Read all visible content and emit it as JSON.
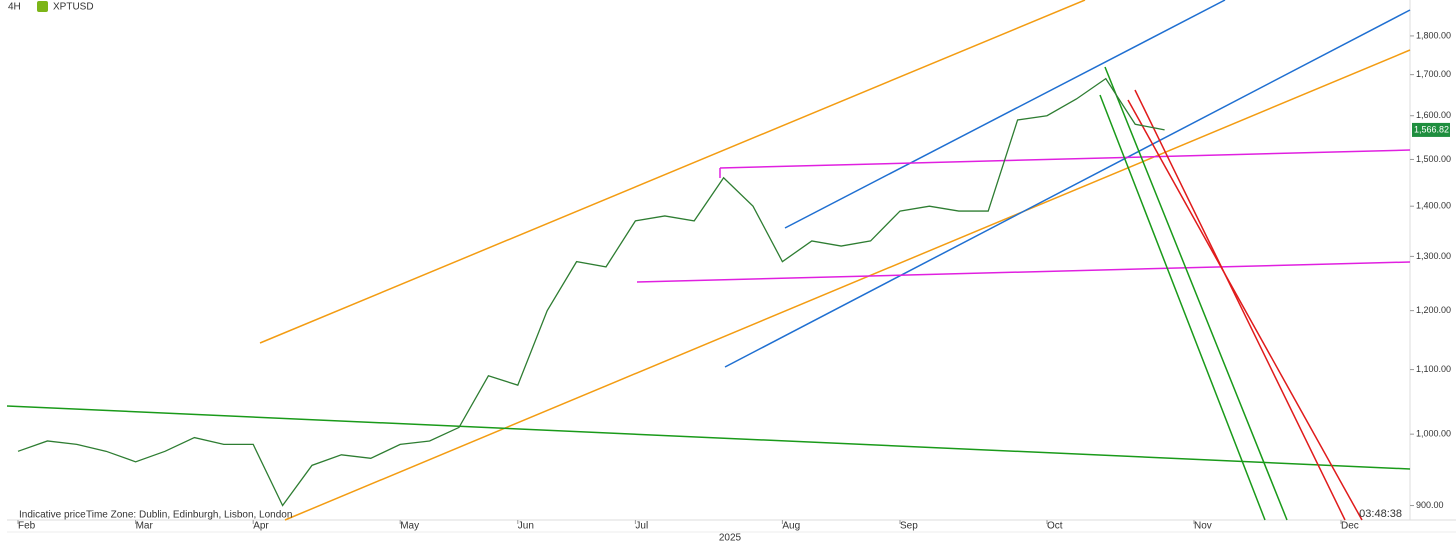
{
  "chart_data": {
    "type": "line",
    "interval": "4H",
    "symbol": "XPTUSD",
    "footnote": "Indicative price",
    "timezone": "Time Zone: Dublin, Edinburgh, Lisbon, London",
    "countdown": "03:48:38",
    "x_label": "2025",
    "categories": [
      "Feb",
      null,
      null,
      null,
      "Mar",
      null,
      null,
      null,
      "Apr",
      null,
      null,
      null,
      null,
      "May",
      null,
      null,
      null,
      "Jun",
      null,
      null,
      null,
      "Jul",
      null,
      null,
      null,
      null,
      "Aug",
      null,
      null,
      null,
      "Sep",
      null,
      null,
      null,
      null,
      "Oct",
      null,
      null,
      null,
      null,
      "Nov",
      null,
      null,
      null,
      null,
      "Dec",
      null,
      null
    ],
    "series": [
      {
        "name": "XPTUSD",
        "color": "#2e7d32",
        "values": [
          975,
          990,
          985,
          975,
          960,
          975,
          995,
          985,
          985,
          900,
          955,
          970,
          965,
          985,
          990,
          1010,
          1090,
          1075,
          1200,
          1290,
          1280,
          1370,
          1380,
          1370,
          1460,
          1400,
          1290,
          1330,
          1320,
          1330,
          1390,
          1400,
          1390,
          1390,
          1590,
          1600,
          1640,
          1690,
          1580,
          1567,
          null,
          null,
          null,
          null,
          null,
          null,
          null,
          null
        ]
      }
    ],
    "last_price": {
      "value": 1566.82,
      "label": "1,566.82",
      "color": "#1e8e3e"
    },
    "log_scale": true,
    "ylim": [
      881,
      1898
    ],
    "yticks": [
      {
        "value": 900,
        "label": "900.00"
      },
      {
        "value": 1000,
        "label": "1,000.00"
      },
      {
        "value": 1100,
        "label": "1,100.00"
      },
      {
        "value": 1200,
        "label": "1,200.00"
      },
      {
        "value": 1300,
        "label": "1,300.00"
      },
      {
        "value": 1400,
        "label": "1,400.00"
      },
      {
        "value": 1500,
        "label": "1,500.00"
      },
      {
        "value": 1600,
        "label": "1,600.00"
      },
      {
        "value": 1700,
        "label": "1,700.00"
      },
      {
        "value": 1800,
        "label": "1,800.00"
      }
    ],
    "grid": false
  }
}
